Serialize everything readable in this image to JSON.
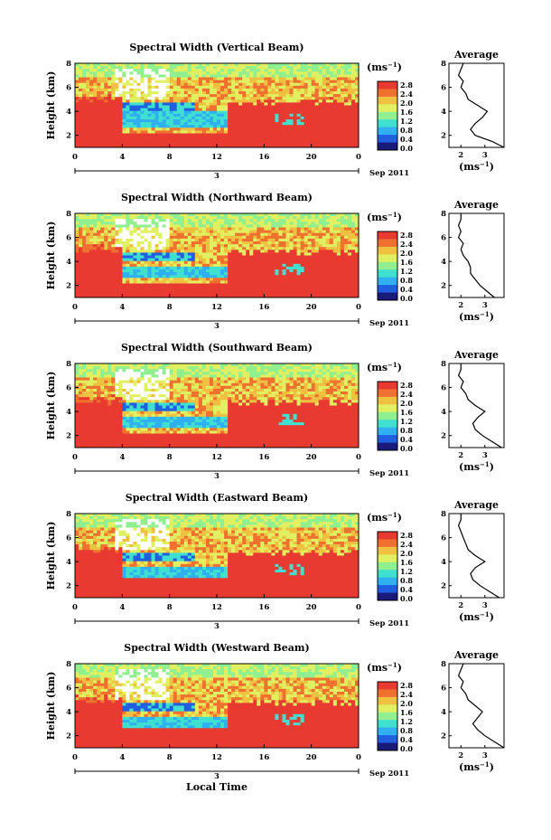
{
  "chart_data": {
    "type": "heatmap",
    "shared": {
      "ylabel": "Height (km)",
      "y_ticks": [
        "2",
        "4",
        "6",
        "8"
      ],
      "x_ticks": [
        "0",
        "4",
        "8",
        "12",
        "16",
        "20",
        "0"
      ],
      "date_labels": [
        "3",
        "Sep 2011"
      ],
      "xlabel": "Local Time",
      "colorbar_unit": "(ms",
      "colorbar_unit_exp": "−1",
      "colorbar_unit_close": ")",
      "colorbar_ticks": [
        "2.8",
        "2.4",
        "2.0",
        "1.6",
        "1.2",
        "0.8",
        "0.4",
        "0.0"
      ],
      "avg_title": "Average",
      "avg_xlabel": "(ms",
      "avg_xlabel_exp": "−1",
      "avg_xlabel_close": ")",
      "ylim": [
        1,
        8
      ],
      "xlim_hours": [
        0,
        24
      ],
      "colormap": [
        "#1a1a7a",
        "#2060e0",
        "#30b0f0",
        "#40e0d0",
        "#90f090",
        "#e0f060",
        "#f0c040",
        "#f07030",
        "#e83a30"
      ]
    },
    "panels": [
      {
        "title": "Spectral Width (Vertical Beam)",
        "colorbar_ticks": [
          "2.8",
          "2.4",
          "2.0",
          "1.6",
          "1.2",
          "0.8",
          "0.4",
          "0.0"
        ],
        "avg_ticks": [
          "2",
          "3"
        ],
        "avg_profile": {
          "height": [
            1,
            1.5,
            2,
            2.5,
            3,
            3.5,
            4,
            4.5,
            5,
            5.5,
            6,
            6.5,
            7,
            7.5,
            8
          ],
          "width": [
            3.8,
            3.3,
            2.6,
            2.4,
            2.6,
            2.9,
            3.1,
            2.7,
            2.3,
            2.2,
            2.0,
            2.1,
            1.9,
            2.0,
            2.1
          ]
        }
      },
      {
        "title": "Spectral Width (Northward Beam)",
        "colorbar_ticks": [
          "2.8",
          "2.4",
          "2.0",
          "1.6",
          "1.2",
          "0.8",
          "0.4",
          "0.0"
        ],
        "avg_ticks": [
          "2",
          "3"
        ],
        "avg_profile": {
          "height": [
            1,
            1.5,
            2,
            2.5,
            3,
            3.5,
            4,
            4.5,
            5,
            5.5,
            6,
            6.5,
            7,
            7.5,
            8
          ],
          "width": [
            3.4,
            3.1,
            2.8,
            2.6,
            2.4,
            2.4,
            2.3,
            2.1,
            2.0,
            2.1,
            1.9,
            2.0,
            1.9,
            2.0,
            2.0
          ]
        }
      },
      {
        "title": "Spectral Width (Southward Beam)",
        "colorbar_ticks": [
          "2.8",
          "2.4",
          "2.0",
          "1.6",
          "1.2",
          "0.8",
          "0.4",
          "0.0"
        ],
        "avg_ticks": [
          "2",
          "3"
        ],
        "avg_profile": {
          "height": [
            1,
            1.5,
            2,
            2.5,
            3,
            3.5,
            4,
            4.5,
            5,
            5.5,
            6,
            6.5,
            7,
            7.5,
            8
          ],
          "width": [
            3.7,
            3.3,
            2.9,
            2.6,
            2.5,
            2.7,
            3.0,
            2.6,
            2.3,
            2.2,
            2.0,
            2.1,
            1.9,
            2.0,
            2.0
          ]
        }
      },
      {
        "title": "Spectral Width (Eastward Beam)",
        "colorbar_ticks": [
          "2.8",
          "2.4",
          "2.0",
          "1.6",
          "1.2",
          "0.8",
          "0.4",
          "0.0"
        ],
        "avg_ticks": [
          "2",
          "3"
        ],
        "avg_profile": {
          "height": [
            1,
            1.5,
            2,
            2.5,
            3,
            3.5,
            4,
            4.5,
            5,
            5.5,
            6,
            6.5,
            7,
            7.5,
            8
          ],
          "width": [
            3.6,
            3.2,
            2.8,
            2.5,
            2.4,
            2.6,
            3.0,
            2.6,
            2.3,
            2.2,
            2.1,
            2.0,
            1.9,
            2.0,
            2.0
          ]
        }
      },
      {
        "title": "Spectral Width (Westward Beam)",
        "colorbar_ticks": [
          "2.8",
          "2.4",
          "2.0",
          "1.6",
          "1.2",
          "0.8",
          "0.4",
          "0.0"
        ],
        "avg_ticks": [
          "2",
          "3"
        ],
        "avg_profile": {
          "height": [
            1,
            1.5,
            2,
            2.5,
            3,
            3.5,
            4,
            4.5,
            5,
            5.5,
            6,
            6.5,
            7,
            7.5,
            8
          ],
          "width": [
            3.8,
            3.4,
            3.0,
            2.7,
            2.5,
            2.7,
            2.9,
            2.6,
            2.3,
            2.2,
            2.0,
            2.1,
            1.9,
            2.0,
            2.1
          ]
        }
      }
    ]
  }
}
